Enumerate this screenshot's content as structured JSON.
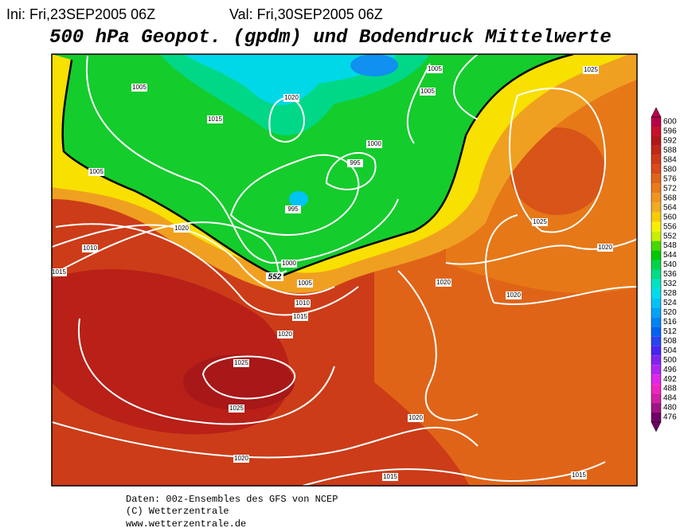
{
  "header": {
    "init": "Ini: Fri,23SEP2005 06Z",
    "valid": "Val: Fri,30SEP2005 06Z"
  },
  "title": "500 hPa Geopot. (gpdm) und Bodendruck Mittelwerte",
  "legend": {
    "levels": [
      600,
      596,
      592,
      588,
      584,
      580,
      576,
      572,
      568,
      564,
      560,
      556,
      552,
      548,
      544,
      540,
      536,
      532,
      528,
      524,
      520,
      516,
      512,
      508,
      504,
      500,
      496,
      492,
      488,
      484,
      480,
      476
    ],
    "colors": [
      "#b8004a",
      "#c8102a",
      "#b01818",
      "#c02818",
      "#d03818",
      "#d84a18",
      "#e06418",
      "#e87c18",
      "#f09420",
      "#f0ac20",
      "#f8cc00",
      "#f8f000",
      "#c8f000",
      "#48d800",
      "#00c800",
      "#00d448",
      "#00dc88",
      "#00e4c4",
      "#00dcec",
      "#00c4f4",
      "#00a4f4",
      "#0084f0",
      "#0064f0",
      "#2844f0",
      "#4824f0",
      "#8024f0",
      "#b024f0",
      "#e024e8",
      "#f024c4",
      "#d020a4",
      "#a01484",
      "#700064"
    ]
  },
  "isobar_labels": [
    "1005",
    "1015",
    "1020",
    "1000",
    "995",
    "995",
    "1005",
    "1020",
    "1010",
    "1015",
    "1000",
    "1005",
    "1010",
    "1015",
    "1020",
    "1020",
    "1020",
    "1020",
    "1025",
    "1025",
    "1025",
    "1025",
    "1005",
    "1005",
    "1020",
    "1020",
    "1015",
    "1015"
  ],
  "contour_label": "552",
  "footer": [
    "Daten: 00z-Ensembles des GFS von NCEP",
    "(C) Wetterzentrale",
    "www.wetterzentrale.de"
  ]
}
